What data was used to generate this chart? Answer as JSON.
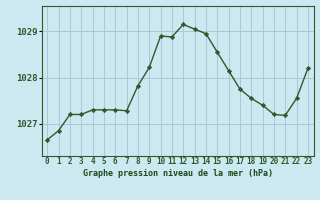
{
  "x": [
    0,
    1,
    2,
    3,
    4,
    5,
    6,
    7,
    8,
    9,
    10,
    11,
    12,
    13,
    14,
    15,
    16,
    17,
    18,
    19,
    20,
    21,
    22,
    23
  ],
  "y": [
    1026.65,
    1026.85,
    1027.2,
    1027.2,
    1027.3,
    1027.3,
    1027.3,
    1027.28,
    1027.82,
    1028.22,
    1028.9,
    1028.88,
    1029.15,
    1029.05,
    1028.95,
    1028.55,
    1028.15,
    1027.75,
    1027.55,
    1027.4,
    1027.2,
    1027.18,
    1027.55,
    1028.2
  ],
  "line_color": "#2d5a2d",
  "marker": "D",
  "marker_size": 2.2,
  "bg_color": "#cce8f0",
  "grid_color": "#aac8d8",
  "ylabel_ticks": [
    1027,
    1028,
    1029
  ],
  "ylim": [
    1026.3,
    1029.55
  ],
  "xlim": [
    -0.5,
    23.5
  ],
  "title": "Graphe pression niveau de la mer (hPa)",
  "title_color": "#1a4a1a",
  "tick_color": "#2d5a2d",
  "spine_color": "#2d5a2d",
  "xlabel_fontsize": 6.0,
  "ylabel_fontsize": 6.5,
  "tick_fontsize": 5.5
}
